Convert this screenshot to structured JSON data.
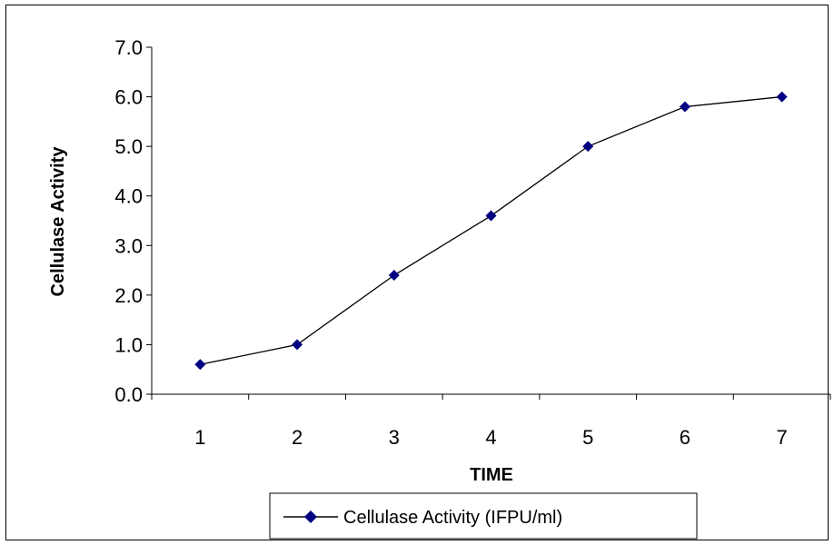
{
  "chart_data": {
    "type": "line",
    "title": "",
    "xlabel": "TIME",
    "ylabel": "Cellulase Activity",
    "categories": [
      "1",
      "2",
      "3",
      "4",
      "5",
      "6",
      "7"
    ],
    "series": [
      {
        "name": "Cellulase Activity (IFPU/ml)",
        "values": [
          0.6,
          1.0,
          2.4,
          3.6,
          5.0,
          5.8,
          6.0
        ],
        "color": "#000080",
        "marker": "diamond"
      }
    ],
    "ylim": [
      0,
      7
    ],
    "yticks": [
      "0.0",
      "1.0",
      "2.0",
      "3.0",
      "4.0",
      "5.0",
      "6.0",
      "7.0"
    ],
    "grid": false,
    "legend": "bottom"
  }
}
